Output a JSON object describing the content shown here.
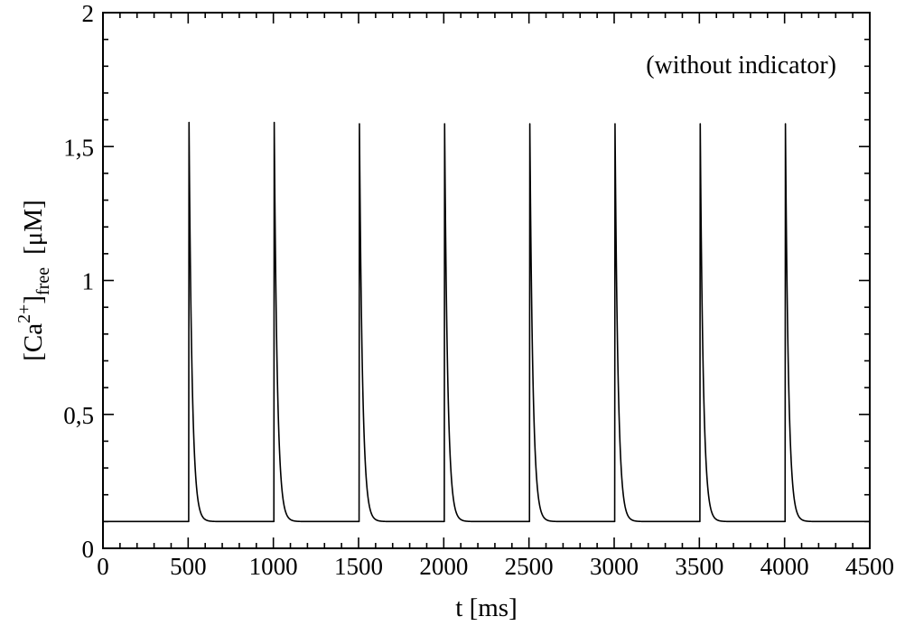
{
  "chart_data": {
    "type": "line",
    "title": "",
    "annotation": "(without indicator)",
    "xlabel": "t [ms]",
    "ylabel": {
      "prefix": "[Ca",
      "sup": "2+",
      "close": "]",
      "sub": "free",
      "unit": "[μM]"
    },
    "xlim": [
      0,
      4500
    ],
    "ylim": [
      0,
      2
    ],
    "x_ticks": [
      0,
      500,
      1000,
      1500,
      2000,
      2500,
      3000,
      3500,
      4000,
      4500
    ],
    "x_tick_labels": [
      "0",
      "500",
      "1000",
      "1500",
      "2000",
      "2500",
      "3000",
      "3500",
      "4000",
      "4500"
    ],
    "y_ticks": [
      0,
      0.5,
      1,
      1.5,
      2
    ],
    "y_tick_labels": [
      "0",
      "0,5",
      "1",
      "1,5",
      "2"
    ],
    "grid": false,
    "series": [
      {
        "color": "#000000",
        "baseline": 0.1,
        "peaks": [
          {
            "t": 505,
            "value": 1.59
          },
          {
            "t": 1005,
            "value": 1.59
          },
          {
            "t": 1505,
            "value": 1.585
          },
          {
            "t": 2005,
            "value": 1.585
          },
          {
            "t": 2505,
            "value": 1.585
          },
          {
            "t": 3005,
            "value": 1.585
          },
          {
            "t": 3505,
            "value": 1.585
          },
          {
            "t": 4005,
            "value": 1.585
          }
        ],
        "decay_time_constant_ms": 18
      }
    ]
  }
}
